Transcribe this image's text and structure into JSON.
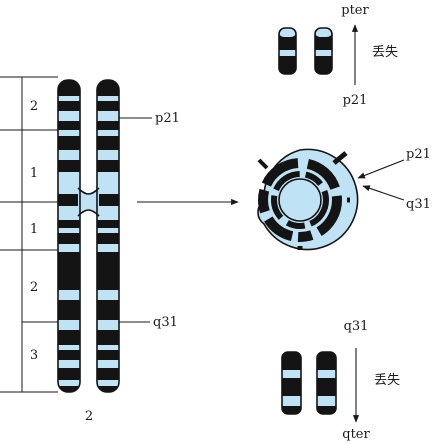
{
  "figure": {
    "chromosome_label": "2",
    "scale_regions": [
      "2",
      "1",
      "1",
      "2",
      "3"
    ],
    "band_labels": {
      "p21": "p21",
      "q31": "q31"
    },
    "top_fragment": {
      "top_label": "pter",
      "bottom_label": "p21",
      "loss_label": "丢失"
    },
    "bottom_fragment": {
      "top_label": "q31",
      "bottom_label": "qter",
      "loss_label": "丢失"
    },
    "ring_labels": {
      "p21": "p21",
      "q31": "q31"
    }
  }
}
